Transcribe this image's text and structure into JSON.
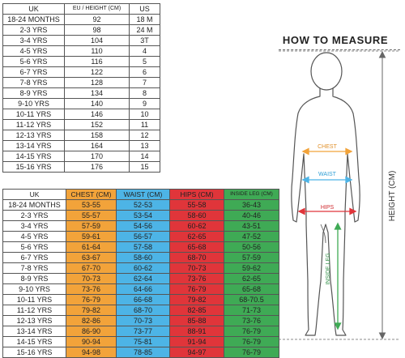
{
  "size_table": {
    "headers": [
      "UK",
      "EU / HEIGHT (CM)",
      "US"
    ],
    "rows": [
      [
        "18-24 MONTHS",
        "92",
        "18 M"
      ],
      [
        "2-3 YRS",
        "98",
        "24 M"
      ],
      [
        "3-4 YRS",
        "104",
        "3T"
      ],
      [
        "4-5 YRS",
        "110",
        "4"
      ],
      [
        "5-6 YRS",
        "116",
        "5"
      ],
      [
        "6-7 YRS",
        "122",
        "6"
      ],
      [
        "7-8 YRS",
        "128",
        "7"
      ],
      [
        "8-9 YRS",
        "134",
        "8"
      ],
      [
        "9-10 YRS",
        "140",
        "9"
      ],
      [
        "10-11 YRS",
        "146",
        "10"
      ],
      [
        "11-12 YRS",
        "152",
        "11"
      ],
      [
        "12-13 YRS",
        "158",
        "12"
      ],
      [
        "13-14 YRS",
        "164",
        "13"
      ],
      [
        "14-15 YRS",
        "170",
        "14"
      ],
      [
        "15-16 YRS",
        "176",
        "15"
      ]
    ]
  },
  "measure_table": {
    "headers": [
      "UK",
      "CHEST (CM)",
      "WAIST (CM)",
      "HIPS (CM)",
      "INSIDE LEG (CM)"
    ],
    "rows": [
      [
        "18-24 MONTHS",
        "53-55",
        "52-53",
        "55-58",
        "36-43"
      ],
      [
        "2-3 YRS",
        "55-57",
        "53-54",
        "58-60",
        "40-46"
      ],
      [
        "3-4 YRS",
        "57-59",
        "54-56",
        "60-62",
        "43-51"
      ],
      [
        "4-5 YRS",
        "59-61",
        "56-57",
        "62-65",
        "47-52"
      ],
      [
        "5-6 YRS",
        "61-64",
        "57-58",
        "65-68",
        "50-56"
      ],
      [
        "6-7 YRS",
        "63-67",
        "58-60",
        "68-70",
        "57-59"
      ],
      [
        "7-8 YRS",
        "67-70",
        "60-62",
        "70-73",
        "59-62"
      ],
      [
        "8-9 YRS",
        "70-73",
        "62-64",
        "73-76",
        "62-65"
      ],
      [
        "9-10 YRS",
        "73-76",
        "64-66",
        "76-79",
        "65-68"
      ],
      [
        "10-11 YRS",
        "76-79",
        "66-68",
        "79-82",
        "68-70.5"
      ],
      [
        "11-12 YRS",
        "79-82",
        "68-70",
        "82-85",
        "71-73"
      ],
      [
        "12-13 YRS",
        "82-86",
        "70-73",
        "85-88",
        "73-76"
      ],
      [
        "13-14 YRS",
        "86-90",
        "73-77",
        "88-91",
        "76-79"
      ],
      [
        "14-15 YRS",
        "90-94",
        "75-81",
        "91-94",
        "76-79"
      ],
      [
        "15-16 YRS",
        "94-98",
        "78-85",
        "94-97",
        "76-79"
      ]
    ],
    "column_colors": [
      "#ffffff",
      "#f2a33a",
      "#4db4e6",
      "#e0353a",
      "#3faa55"
    ]
  },
  "how_to_measure": {
    "title": "HOW TO MEASURE",
    "chest_label": "CHEST",
    "waist_label": "WAIST",
    "hips_label": "HIPS",
    "inside_leg_label": "INSIDE LEG",
    "height_label": "HEIGHT (CM)",
    "chest_color": "#f2a33a",
    "waist_color": "#4db4e6",
    "hips_color": "#e0353a",
    "inside_leg_color": "#3faa55"
  }
}
